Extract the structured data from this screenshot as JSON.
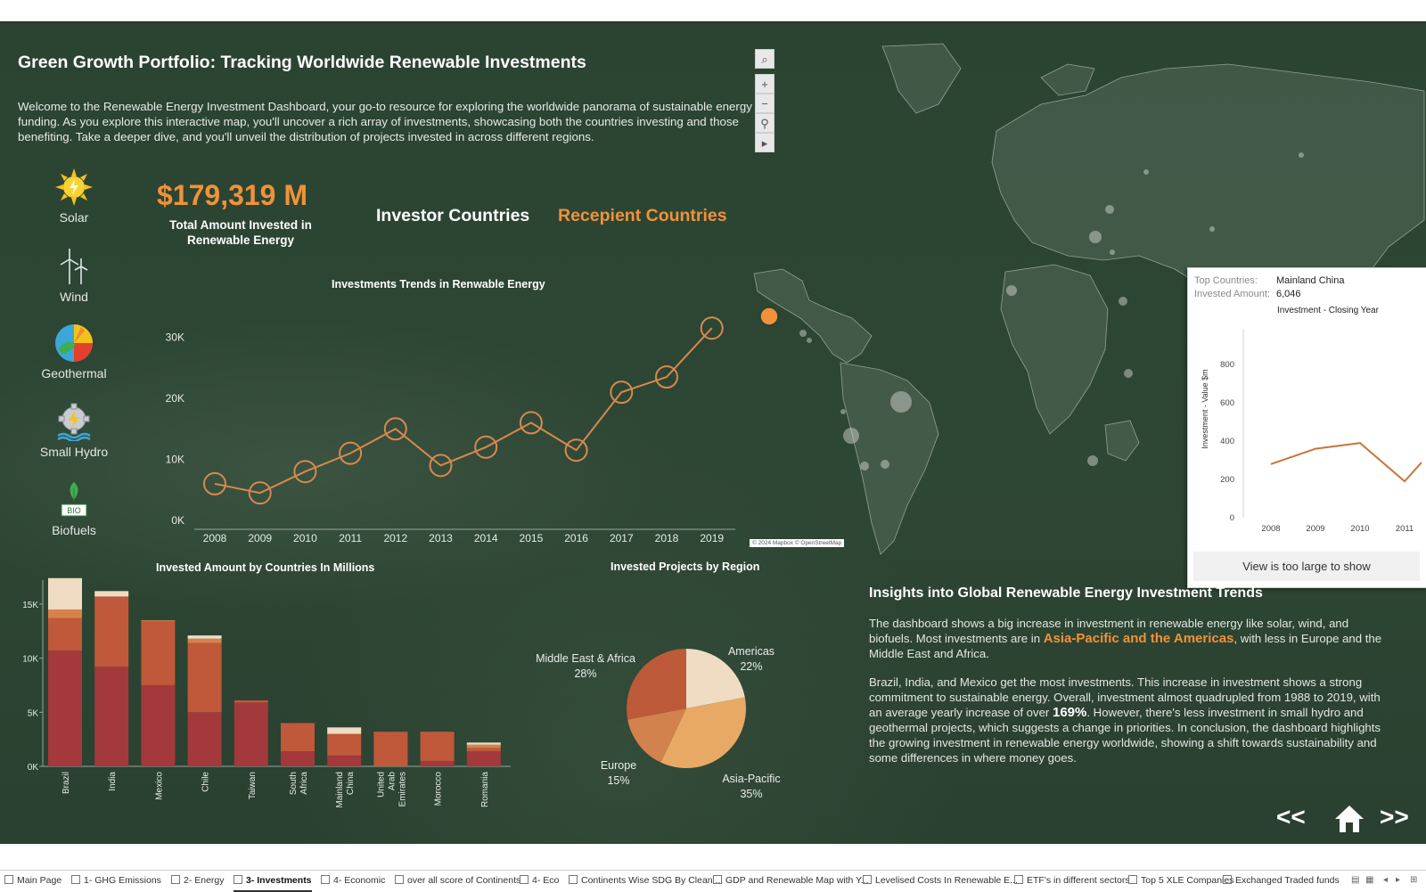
{
  "dashboard": {
    "title": "Green Growth Portfolio: Tracking Worldwide Renewable Investments",
    "intro": "Welcome to the Renewable Energy Investment Dashboard, your go-to resource for exploring the worldwide panorama of sustainable energy funding. As you explore this interactive map, you'll uncover a rich array of investments, showcasing both the countries investing and those benefiting. Take a deeper dive, and you'll unveil the distribution of projects invested in across different regions."
  },
  "sidebar": {
    "items": [
      {
        "label": "Solar",
        "icon": "sun-icon"
      },
      {
        "label": "Wind",
        "icon": "wind-turbine-icon"
      },
      {
        "label": "Geothermal",
        "icon": "geothermal-icon"
      },
      {
        "label": "Small Hydro",
        "icon": "hydro-gear-icon"
      },
      {
        "label": "Biofuels",
        "icon": "bio-leaf-icon"
      }
    ]
  },
  "kpi": {
    "value": "$179,319 M",
    "label": "Total Amount Invested in Renewable Energy"
  },
  "toggles": {
    "investor": "Investor Countries",
    "recipient": "Recepient Countries"
  },
  "colors": {
    "accent": "#f0923a",
    "background": "#2a4130",
    "bar_dark": "#a3393a",
    "bar_mid": "#c0583a",
    "bar_light": "#d7824b",
    "bar_pale": "#efdcc3"
  },
  "map": {
    "tools": [
      "search-icon",
      "zoom-in-icon",
      "zoom-out-icon",
      "pin-icon",
      "play-icon"
    ],
    "tool_glyphs": [
      "⌕",
      "+",
      "−",
      "⚲",
      "▸"
    ],
    "attribution": "© 2024 Mapbox © OpenStreetMap"
  },
  "tooltip": {
    "top_countries_label": "Top Countries:",
    "top_countries_value": "Mainland China",
    "amount_label": "Invested Amount:",
    "amount_value": "6,046",
    "footer": "View is too large to show"
  },
  "insights": {
    "title": "Insights into Global Renewable Energy Investment Trends",
    "p1_start": "The dashboard shows a big increase in investment in renewable energy like solar, wind, and biofuels. Most investments are in ",
    "p1_highlight": "Asia-Pacific and the Americas",
    "p1_end": ", with less in Europe and the Middle East and Africa.",
    "p2_start": "Brazil, India, and Mexico get the most investments. This increase in investment shows a strong commitment to sustainable energy. Overall, investment almost quadrupled from 1988 to 2019, with an average yearly increase of over ",
    "p2_highlight": "169%",
    "p2_end": ". However, there's less investment in small hydro and geothermal projects, which suggests a change in priorities. In conclusion, the dashboard highlights the growing investment in renewable energy worldwide, showing a shift towards sustainability and some differences in where money goes."
  },
  "navigation": {
    "prev": "<<",
    "next": ">>",
    "home_icon": "home-icon"
  },
  "tabs": [
    {
      "label": "Main Page",
      "active": false
    },
    {
      "label": "1- GHG Emissions",
      "active": false
    },
    {
      "label": "2- Energy",
      "active": false
    },
    {
      "label": "3- Investments",
      "active": true
    },
    {
      "label": "4- Economic",
      "active": false
    },
    {
      "label": "over all score of Continents",
      "active": false
    },
    {
      "label": "4- Eco",
      "active": false
    },
    {
      "label": "Continents Wise SDG By Clean ...",
      "active": false
    },
    {
      "label": "GDP and Renewable Map with Y...",
      "active": false
    },
    {
      "label": "Levelised Costs In Renewable E...",
      "active": false
    },
    {
      "label": "ETF's in different sectors",
      "active": false
    },
    {
      "label": "Top 5 XLE Companies",
      "active": false
    },
    {
      "label": "Exchanged Traded funds",
      "active": false
    }
  ],
  "chart_data": [
    {
      "type": "line",
      "title": "Investments Trends in Renwable Energy",
      "x": [
        "2008",
        "2009",
        "2010",
        "2011",
        "2012",
        "2013",
        "2014",
        "2015",
        "2016",
        "2017",
        "2018",
        "2019"
      ],
      "series": [
        {
          "values": [
            6000,
            4500,
            8000,
            11000,
            15000,
            9000,
            12000,
            16000,
            11500,
            21000,
            23500,
            31500
          ]
        }
      ],
      "yticks": [
        "0K",
        "10K",
        "20K",
        "30K"
      ],
      "ylim": [
        0,
        32000
      ]
    },
    {
      "type": "bar",
      "title": "Invested Amount by Countries In Millions",
      "categories": [
        "Brazil",
        "India",
        "Mexico",
        "Chile",
        "Taiwan",
        "South Africa",
        "Mainland China",
        "United Arab Emirates",
        "Morocco",
        "Romania"
      ],
      "series": [
        {
          "values": [
            10700,
            9200,
            7500,
            5000,
            5900,
            1400,
            1000,
            0,
            500,
            1400
          ]
        },
        {
          "values": [
            3000,
            6500,
            5900,
            6400,
            200,
            2600,
            2000,
            3200,
            2700,
            300
          ]
        },
        {
          "values": [
            800,
            0,
            100,
            400,
            0,
            0,
            0,
            0,
            0,
            300
          ]
        },
        {
          "values": [
            2900,
            500,
            0,
            300,
            0,
            0,
            600,
            0,
            0,
            200
          ]
        }
      ],
      "yticks": [
        "0K",
        "5K",
        "10K",
        "15K"
      ],
      "ylim": [
        0,
        18000
      ]
    },
    {
      "type": "pie",
      "title": "Invested Projects by Region",
      "categories": [
        "Americas",
        "Asia-Pacific",
        "Europe",
        "Middle East & Africa"
      ],
      "values": [
        22,
        35,
        15,
        28
      ],
      "labels": [
        "22%",
        "35%",
        "15%",
        "28%"
      ],
      "colors": [
        "#efdcc3",
        "#e8a964",
        "#d2824c",
        "#bd5a39"
      ]
    },
    {
      "type": "line",
      "title": "Investment - Closing Year",
      "ylabel": "Investment - Value $m",
      "x": [
        "2008",
        "2009",
        "2010",
        "2011"
      ],
      "series": [
        {
          "values": [
            280,
            360,
            390,
            190
          ]
        }
      ],
      "yticks": [
        "0",
        "200",
        "400",
        "600",
        "800"
      ],
      "ylim": [
        0,
        900
      ]
    }
  ]
}
